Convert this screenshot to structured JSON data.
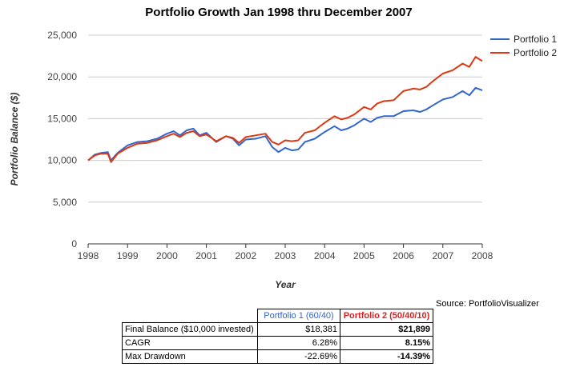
{
  "chart_data": {
    "type": "line",
    "title": "Portfolio Growth Jan 1998 thru December 2007",
    "xlabel": "Year",
    "ylabel": "Portfolio Balance ($)",
    "xlim": [
      1998,
      2008
    ],
    "ylim": [
      0,
      25000
    ],
    "x_ticks": [
      "1998",
      "1999",
      "2000",
      "2001",
      "2002",
      "2003",
      "2004",
      "2005",
      "2006",
      "2007",
      "2008"
    ],
    "y_ticks": [
      "0",
      "5,000",
      "10,000",
      "15,000",
      "20,000",
      "25,000"
    ],
    "grid": true,
    "legend_position": "top-right",
    "series": [
      {
        "name": "Portfolio 1",
        "color": "#3366cc",
        "points": [
          [
            1998.0,
            10000
          ],
          [
            1998.17,
            10700
          ],
          [
            1998.33,
            10900
          ],
          [
            1998.5,
            11000
          ],
          [
            1998.58,
            10000
          ],
          [
            1998.75,
            10900
          ],
          [
            1999.0,
            11800
          ],
          [
            1999.25,
            12200
          ],
          [
            1999.5,
            12300
          ],
          [
            1999.75,
            12600
          ],
          [
            2000.0,
            13200
          ],
          [
            2000.17,
            13500
          ],
          [
            2000.33,
            13000
          ],
          [
            2000.5,
            13600
          ],
          [
            2000.67,
            13800
          ],
          [
            2000.83,
            13000
          ],
          [
            2001.0,
            13300
          ],
          [
            2001.25,
            12200
          ],
          [
            2001.5,
            12900
          ],
          [
            2001.67,
            12600
          ],
          [
            2001.83,
            11800
          ],
          [
            2002.0,
            12500
          ],
          [
            2002.25,
            12600
          ],
          [
            2002.5,
            12900
          ],
          [
            2002.67,
            11600
          ],
          [
            2002.83,
            11000
          ],
          [
            2003.0,
            11500
          ],
          [
            2003.17,
            11200
          ],
          [
            2003.33,
            11300
          ],
          [
            2003.5,
            12200
          ],
          [
            2003.75,
            12600
          ],
          [
            2004.0,
            13400
          ],
          [
            2004.25,
            14100
          ],
          [
            2004.42,
            13600
          ],
          [
            2004.58,
            13800
          ],
          [
            2004.75,
            14200
          ],
          [
            2005.0,
            15000
          ],
          [
            2005.17,
            14600
          ],
          [
            2005.33,
            15100
          ],
          [
            2005.5,
            15300
          ],
          [
            2005.75,
            15300
          ],
          [
            2006.0,
            15900
          ],
          [
            2006.25,
            16000
          ],
          [
            2006.42,
            15800
          ],
          [
            2006.58,
            16100
          ],
          [
            2006.75,
            16600
          ],
          [
            2007.0,
            17300
          ],
          [
            2007.25,
            17600
          ],
          [
            2007.5,
            18300
          ],
          [
            2007.67,
            17800
          ],
          [
            2007.83,
            18700
          ],
          [
            2008.0,
            18381
          ]
        ]
      },
      {
        "name": "Portfolio 2",
        "color": "#dc3912",
        "points": [
          [
            1998.0,
            10000
          ],
          [
            1998.17,
            10600
          ],
          [
            1998.33,
            10800
          ],
          [
            1998.5,
            10800
          ],
          [
            1998.58,
            9800
          ],
          [
            1998.75,
            10800
          ],
          [
            1999.0,
            11500
          ],
          [
            1999.25,
            12000
          ],
          [
            1999.5,
            12100
          ],
          [
            1999.75,
            12400
          ],
          [
            2000.0,
            12900
          ],
          [
            2000.17,
            13200
          ],
          [
            2000.33,
            12800
          ],
          [
            2000.5,
            13300
          ],
          [
            2000.67,
            13500
          ],
          [
            2000.83,
            12900
          ],
          [
            2001.0,
            13100
          ],
          [
            2001.25,
            12300
          ],
          [
            2001.5,
            12900
          ],
          [
            2001.67,
            12700
          ],
          [
            2001.83,
            12100
          ],
          [
            2002.0,
            12800
          ],
          [
            2002.25,
            13000
          ],
          [
            2002.5,
            13200
          ],
          [
            2002.67,
            12200
          ],
          [
            2002.83,
            11900
          ],
          [
            2003.0,
            12400
          ],
          [
            2003.17,
            12300
          ],
          [
            2003.33,
            12400
          ],
          [
            2003.5,
            13300
          ],
          [
            2003.75,
            13600
          ],
          [
            2004.0,
            14500
          ],
          [
            2004.25,
            15300
          ],
          [
            2004.42,
            14900
          ],
          [
            2004.58,
            15100
          ],
          [
            2004.75,
            15500
          ],
          [
            2005.0,
            16400
          ],
          [
            2005.17,
            16100
          ],
          [
            2005.33,
            16800
          ],
          [
            2005.5,
            17100
          ],
          [
            2005.75,
            17200
          ],
          [
            2006.0,
            18300
          ],
          [
            2006.25,
            18600
          ],
          [
            2006.42,
            18500
          ],
          [
            2006.58,
            18800
          ],
          [
            2006.75,
            19500
          ],
          [
            2007.0,
            20400
          ],
          [
            2007.25,
            20800
          ],
          [
            2007.5,
            21600
          ],
          [
            2007.67,
            21200
          ],
          [
            2007.83,
            22400
          ],
          [
            2008.0,
            21899
          ]
        ]
      }
    ]
  },
  "source_text": "Source: PortfolioVisualizer",
  "summary_table": {
    "header": [
      "",
      "Portfolio 1 (60/40)",
      "Portfolio 2 (50/40/10)"
    ],
    "rows": [
      {
        "label": "Final Balance ($10,000 invested)",
        "p1": "$18,381",
        "p2": "$21,899"
      },
      {
        "label": "CAGR",
        "p1": "6.28%",
        "p2": "8.15%"
      },
      {
        "label": "Max Drawdown",
        "p1": "-22.69%",
        "p2": "-14.39%"
      }
    ]
  }
}
